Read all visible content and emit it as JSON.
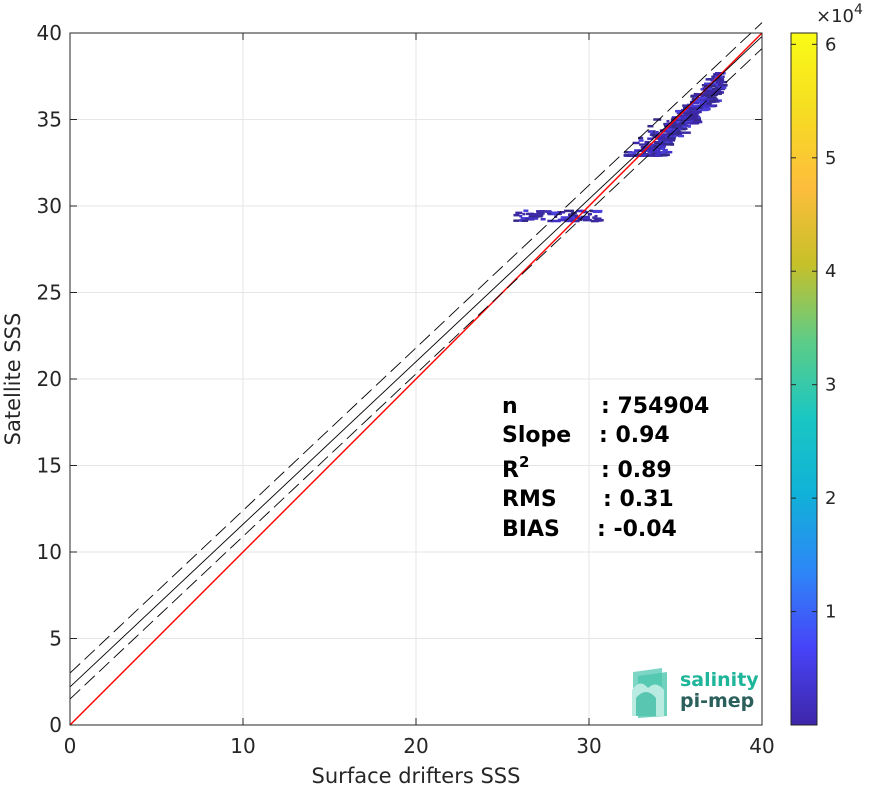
{
  "chart_data": {
    "type": "heatmap",
    "title": "",
    "xlabel": "Surface drifters SSS",
    "ylabel": "Satellite SSS",
    "xlim": [
      0,
      40
    ],
    "ylim": [
      0,
      40
    ],
    "xticks": [
      0,
      10,
      20,
      30,
      40
    ],
    "yticks": [
      0,
      5,
      10,
      15,
      20,
      25,
      30,
      35,
      40
    ],
    "grid": true,
    "colorbar": {
      "range": [
        0,
        61000
      ],
      "ticks": [
        1,
        2,
        3,
        4,
        5,
        6
      ],
      "multiplier_base": "×10",
      "multiplier_exponent": "4",
      "colors": [
        "#3e26a8",
        "#4743f8",
        "#2e87f7",
        "#10b1d8",
        "#1ac7c2",
        "#5ecc86",
        "#c7c029",
        "#fdbd3c",
        "#f6dd22",
        "#f9fb15"
      ]
    },
    "lines": [
      {
        "kind": "identity",
        "color": "#ff0000",
        "slope": 1.0,
        "intercept": 0.0
      },
      {
        "kind": "regression",
        "color": "#000000",
        "slope": 0.94,
        "intercept": 2.2
      },
      {
        "kind": "regression-upper",
        "color": "#000000",
        "dash": true,
        "slope": 0.94,
        "intercept": 3.0
      },
      {
        "kind": "regression-lower",
        "color": "#000000",
        "dash": true,
        "slope": 0.94,
        "intercept": 1.5
      }
    ],
    "density_regions": [
      {
        "x": [
          32.0,
          37.5
        ],
        "y": [
          33.0,
          37.8
        ]
      },
      {
        "x": [
          25.5,
          30.5
        ],
        "y": [
          29.2,
          29.8
        ]
      }
    ],
    "stats": {
      "rows": [
        {
          "label": "n",
          "value": ": 754904"
        },
        {
          "label": "Slope",
          "value": ": 0.94"
        },
        {
          "label": "R",
          "sup": "2",
          "value": ": 0.89"
        },
        {
          "label": "RMS",
          "value": ": 0.31"
        },
        {
          "label": "BIAS",
          "value": ": -0.04"
        }
      ]
    }
  },
  "logo": {
    "line1": "salinity",
    "line2": "pi-mep",
    "color1": "#1fb59a",
    "color2": "#2a5f5c"
  }
}
